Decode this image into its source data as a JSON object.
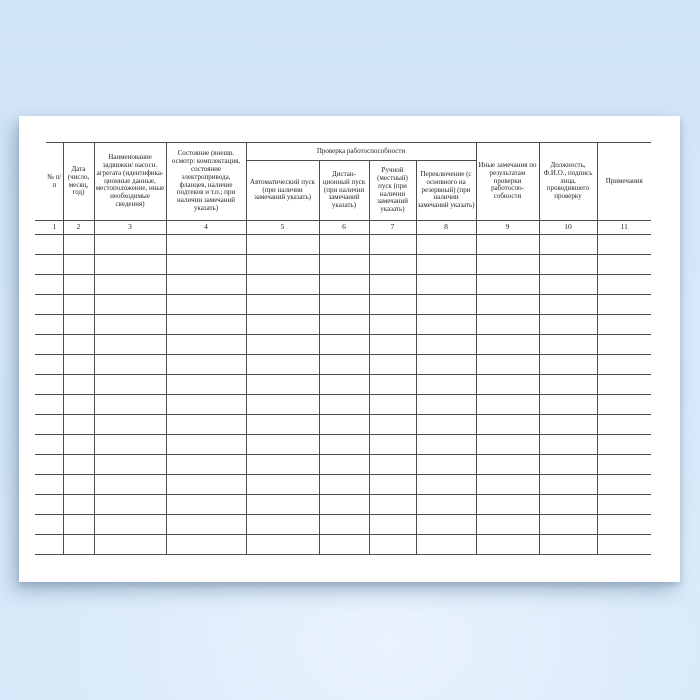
{
  "colors": {
    "background": "#d5e7f9",
    "paper": "#ffffff",
    "grid_line": "#4d4d4d",
    "text": "#1f1f1f"
  },
  "document": {
    "group_header": "Проверка работоспособности",
    "columns": [
      {
        "num": "1",
        "header": "№ п/п"
      },
      {
        "num": "2",
        "header": "Дата (число, месяц, год)"
      },
      {
        "num": "3",
        "header": "Наименование задвижки/ насосн. агрегата (идентифика- ционные данные, местоположение, иные необходимые сведения)"
      },
      {
        "num": "4",
        "header": "Состояние (внешн. осмотр: комплектация, состояние электропривода, фланцев, наличие подтеков и т.п.; при наличии замечаний указать)"
      },
      {
        "num": "5",
        "header": "Автоматический пуск (при наличии замечаний указать)"
      },
      {
        "num": "6",
        "header": "Дистан- ционный пуск (при наличии замечаний указать)"
      },
      {
        "num": "7",
        "header": "Ручной (местный) пуск (при наличии замечаний указать)"
      },
      {
        "num": "8",
        "header": "Переключение (с основного на резервный) (при наличии замечаний указать)"
      },
      {
        "num": "9",
        "header": "Иные замечания по результатам проверки работоспо- собности"
      },
      {
        "num": "10",
        "header": "Должность, Ф.И.О., подпись лица, проводившего проверку"
      },
      {
        "num": "11",
        "header": "Примечания"
      }
    ],
    "empty_rows": 16
  }
}
